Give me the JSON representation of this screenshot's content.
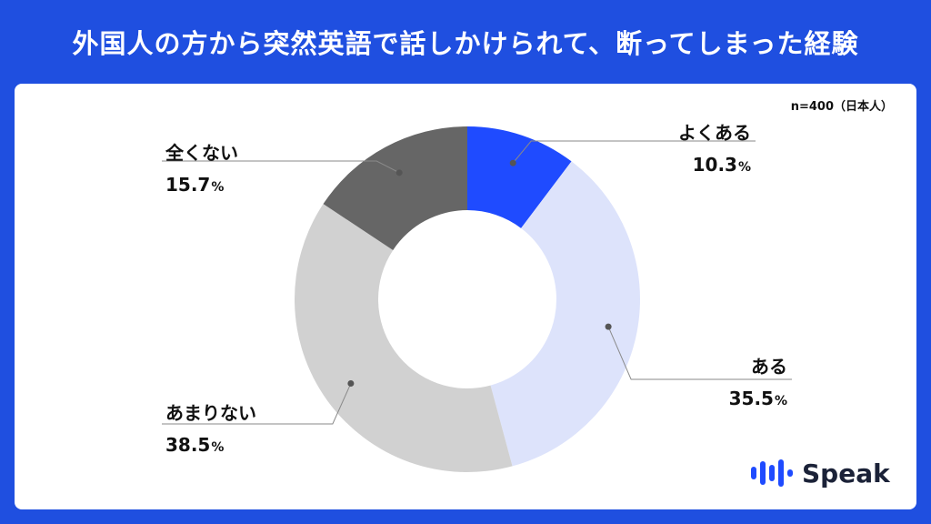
{
  "title": "外国人の方から突然英語で話しかけられて、断ってしまった経験",
  "sample_note": "n=400（日本人）",
  "logo_text": "Speak",
  "colors": {
    "background": "#1f4fe0",
    "slice_yoku_aru": "#1f4bff",
    "slice_aru": "#dde3fb",
    "slice_amari_nai": "#d1d1d1",
    "slice_mattaku_nai": "#666666"
  },
  "chart_data": {
    "type": "pie",
    "donut": true,
    "start_angle": "12 o'clock, clockwise",
    "slices": [
      {
        "label": "よくある",
        "value": 10.3,
        "display": "10.3",
        "unit": "%"
      },
      {
        "label": "ある",
        "value": 35.5,
        "display": "35.5",
        "unit": "%"
      },
      {
        "label": "あまりない",
        "value": 38.5,
        "display": "38.5",
        "unit": "%"
      },
      {
        "label": "全くない",
        "value": 15.7,
        "display": "15.7",
        "unit": "%"
      }
    ]
  }
}
